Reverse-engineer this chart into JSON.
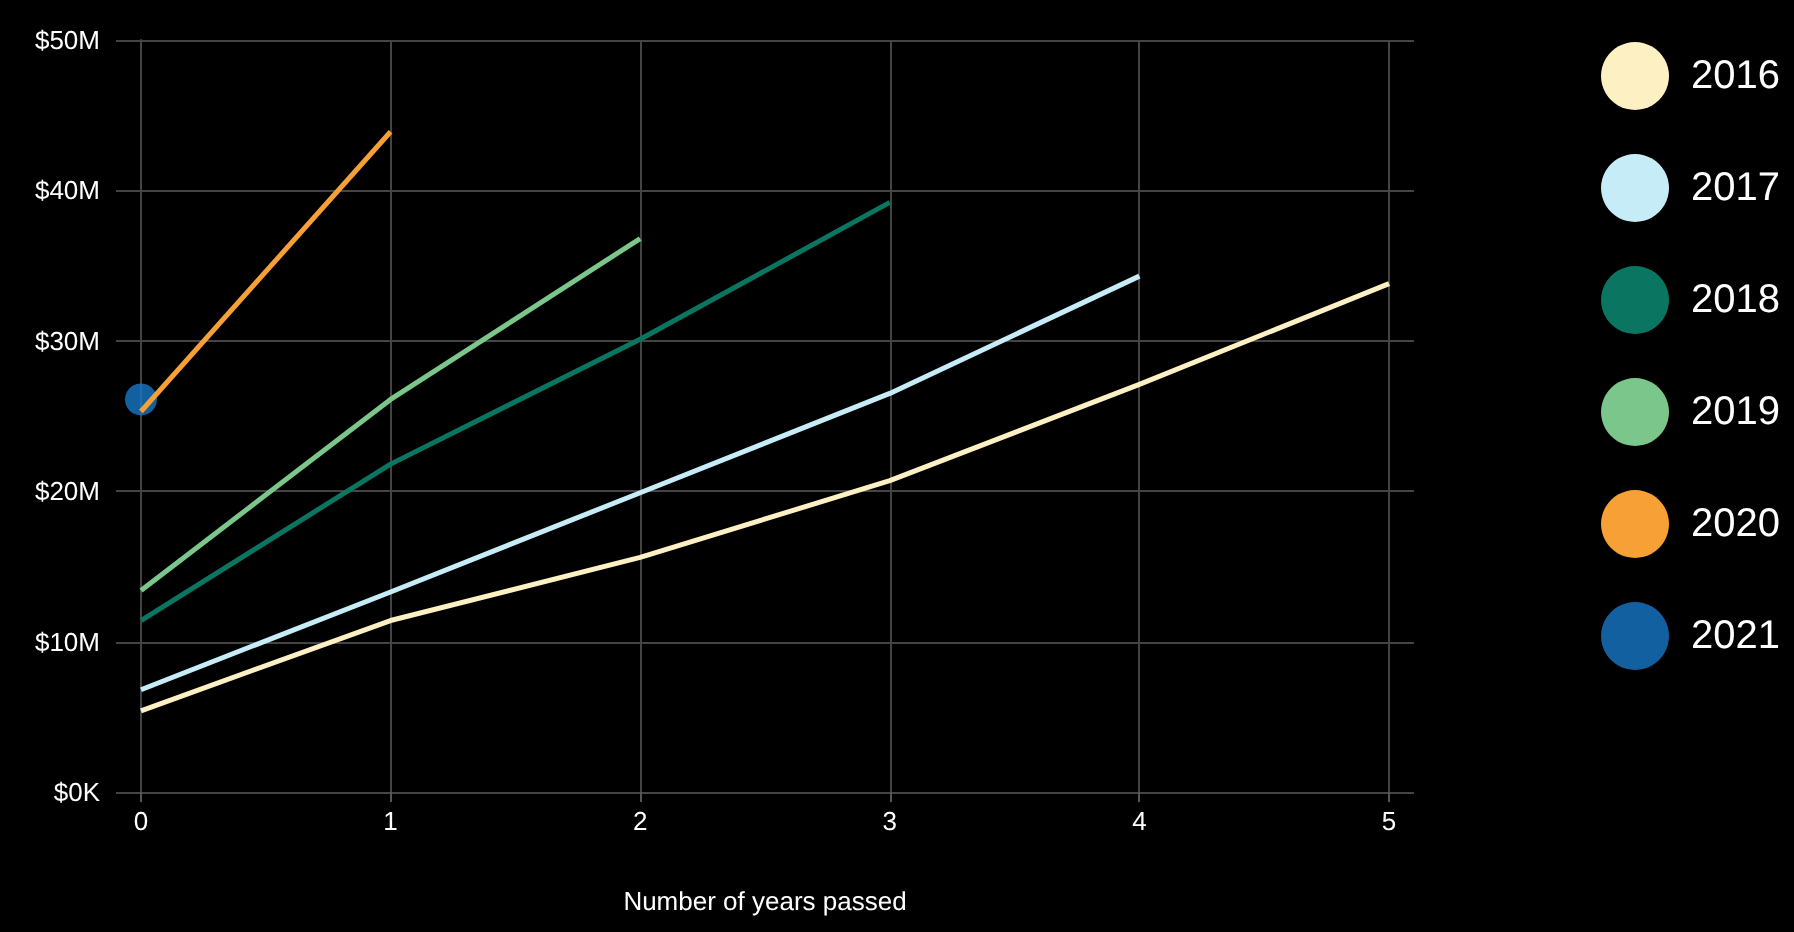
{
  "chart_data": {
    "type": "line",
    "xlabel": "Number of years passed",
    "x": [
      0,
      1,
      2,
      3,
      4,
      5
    ],
    "xlim": [
      -0.1,
      5.1
    ],
    "xticks": [
      0,
      1,
      2,
      3,
      4,
      5
    ],
    "ylim": [
      0,
      50
    ],
    "yticks": [
      {
        "value": 0,
        "label": "$0K"
      },
      {
        "value": 10,
        "label": "$10M"
      },
      {
        "value": 20,
        "label": "$20M"
      },
      {
        "value": 30,
        "label": "$30M"
      },
      {
        "value": 40,
        "label": "$40M"
      },
      {
        "value": 50,
        "label": "$50M"
      }
    ],
    "grid": true,
    "legend": "right",
    "marker": "none",
    "line_style": "solid",
    "series": [
      {
        "name": "2016",
        "color": "#fdf0c2",
        "values": [
          5.4,
          11.4,
          15.6,
          20.7,
          27.1,
          33.8
        ]
      },
      {
        "name": "2017",
        "color": "#c6ecf7",
        "values": [
          6.8,
          13.3,
          19.9,
          26.5,
          34.3,
          null
        ]
      },
      {
        "name": "2018",
        "color": "#0a7560",
        "values": [
          11.4,
          21.8,
          30.1,
          39.2,
          null,
          null
        ]
      },
      {
        "name": "2019",
        "color": "#7bc68a",
        "values": [
          13.4,
          26.1,
          36.8,
          null,
          null,
          null
        ]
      },
      {
        "name": "2020",
        "color": "#f7a035",
        "values": [
          25.3,
          43.9,
          null,
          null,
          null,
          null
        ]
      },
      {
        "name": "2021",
        "color": "#1878c8",
        "type": "scatter",
        "marker": "circle",
        "values": [
          26.1,
          null,
          null,
          null,
          null,
          null
        ]
      }
    ]
  }
}
